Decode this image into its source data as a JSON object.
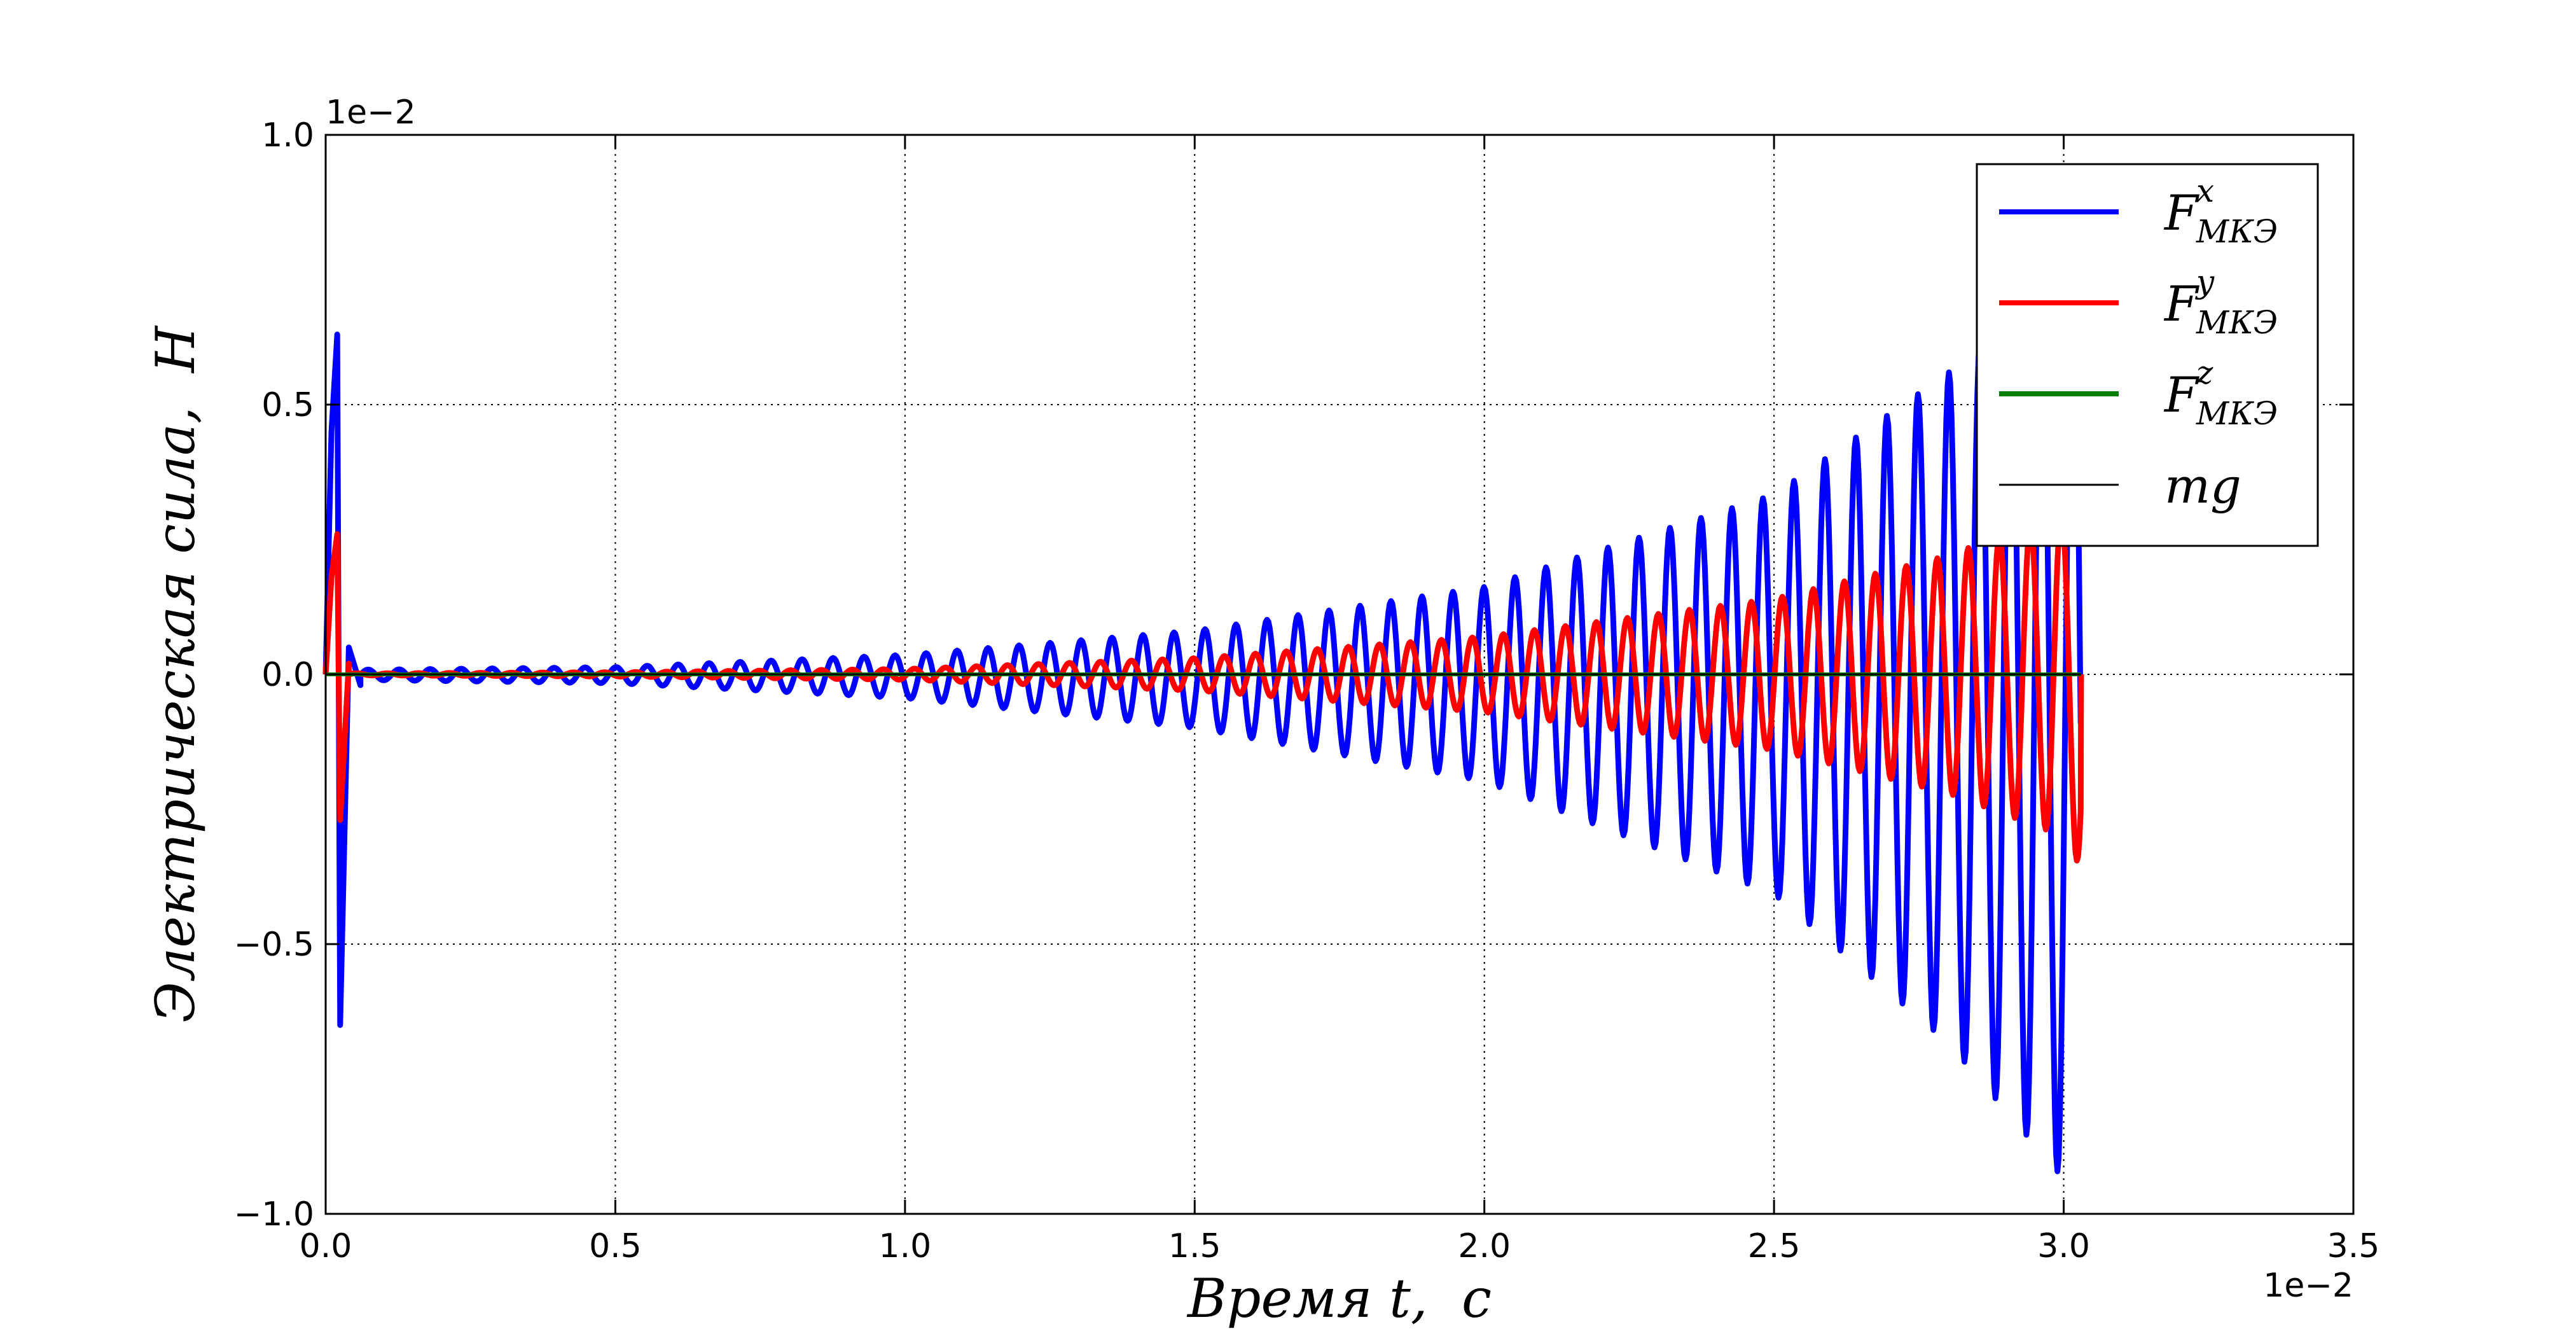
{
  "chart_data": {
    "type": "line",
    "xlabel": "Время t,  c",
    "ylabel": "Электрическая сила,  Н",
    "x_offset": "1e−2",
    "y_offset": "1e−2",
    "xlim": [
      0.0,
      3.5
    ],
    "ylim": [
      -1.0,
      1.0
    ],
    "x_ticks": [
      0.0,
      0.5,
      1.0,
      1.5,
      2.0,
      2.5,
      3.0,
      3.5
    ],
    "y_ticks": [
      -1.0,
      -0.5,
      0.0,
      0.5,
      1.0
    ],
    "x_tick_labels": [
      "0.0",
      "0.5",
      "1.0",
      "1.5",
      "2.0",
      "2.5",
      "3.0",
      "3.5"
    ],
    "y_tick_labels": [
      "−1.0",
      "−0.5",
      "0.0",
      "0.5",
      "1.0"
    ],
    "grid": true,
    "legend_position": "top-right",
    "series": [
      {
        "name": "F^x_МКЭ",
        "label_main": "F",
        "label_sup": "x",
        "label_sub": "МКЭ",
        "color": "#0000ff",
        "kind": "growing-oscillation",
        "t_start": 0.0,
        "t_end": 3.03,
        "initial_spike": [
          [
            0.0,
            0.0
          ],
          [
            0.01,
            0.45
          ],
          [
            0.02,
            0.63
          ],
          [
            0.025,
            -0.65
          ],
          [
            0.04,
            0.05
          ],
          [
            0.06,
            -0.02
          ]
        ],
        "period": 0.0535,
        "envelope": [
          [
            0.1,
            0.01
          ],
          [
            0.5,
            0.015
          ],
          [
            1.0,
            0.04
          ],
          [
            1.5,
            0.09
          ],
          [
            2.0,
            0.18
          ],
          [
            2.5,
            0.37
          ],
          [
            2.8,
            0.62
          ],
          [
            3.0,
            0.85
          ],
          [
            3.03,
            0.9
          ]
        ],
        "offset": -0.1
      },
      {
        "name": "F^y_МКЭ",
        "label_main": "F",
        "label_sup": "y",
        "label_sub": "МКЭ",
        "color": "#ff0000",
        "kind": "growing-oscillation",
        "t_start": 0.0,
        "t_end": 3.03,
        "initial_spike": [
          [
            0.0,
            0.0
          ],
          [
            0.01,
            0.18
          ],
          [
            0.02,
            0.26
          ],
          [
            0.025,
            -0.27
          ],
          [
            0.04,
            0.02
          ]
        ],
        "period": 0.0535,
        "envelope": [
          [
            0.1,
            0.002
          ],
          [
            0.5,
            0.004
          ],
          [
            1.0,
            0.01
          ],
          [
            1.5,
            0.03
          ],
          [
            2.0,
            0.07
          ],
          [
            2.5,
            0.14
          ],
          [
            2.8,
            0.22
          ],
          [
            3.0,
            0.3
          ],
          [
            3.03,
            0.36
          ]
        ],
        "offset": 0.0
      },
      {
        "name": "F^z_МКЭ",
        "label_main": "F",
        "label_sup": "z",
        "label_sub": "МКЭ",
        "color": "#008000",
        "kind": "constant",
        "t_start": 0.0,
        "t_end": 3.03,
        "value": 0.0
      },
      {
        "name": "mg",
        "label_main": "mg",
        "label_sup": "",
        "label_sub": "",
        "color": "#000000",
        "kind": "constant",
        "t_start": 0.0,
        "t_end": 3.03,
        "value": 0.0
      }
    ]
  }
}
